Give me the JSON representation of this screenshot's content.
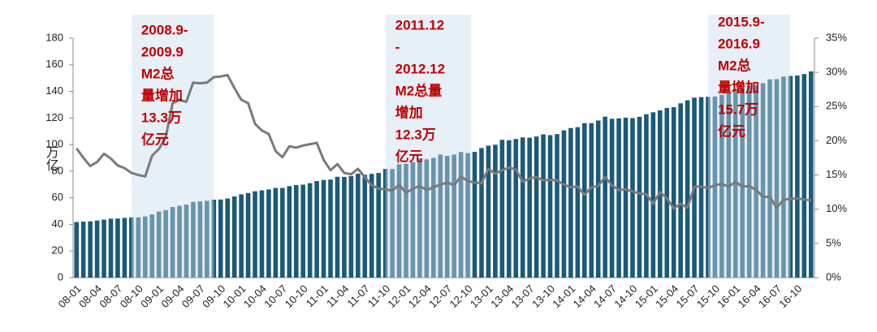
{
  "chart_data": {
    "type": "bar",
    "y_label": "万亿",
    "categories": [
      "08-01",
      null,
      null,
      "08-04",
      null,
      null,
      "08-07",
      null,
      null,
      "08-10",
      null,
      null,
      "09-01",
      null,
      null,
      "09-04",
      null,
      null,
      "09-07",
      null,
      null,
      "09-10",
      null,
      null,
      "10-01",
      null,
      null,
      "10-04",
      null,
      null,
      "10-07",
      null,
      null,
      "10-10",
      null,
      null,
      "11-01",
      null,
      null,
      "11-04",
      null,
      null,
      "11-07",
      null,
      null,
      "11-10",
      null,
      null,
      "12-01",
      null,
      null,
      "12-04",
      null,
      null,
      "12-07",
      null,
      null,
      "12-10",
      null,
      null,
      "13-01",
      null,
      null,
      "13-04",
      null,
      null,
      "13-07",
      null,
      null,
      "13-10",
      null,
      null,
      "14-01",
      null,
      null,
      "14-04",
      null,
      null,
      "14-07",
      null,
      null,
      "14-10",
      null,
      null,
      "15-01",
      null,
      null,
      "15-04",
      null,
      null,
      "15-07",
      null,
      null,
      "15-10",
      null,
      null,
      "16-01",
      null,
      null,
      "16-04",
      null,
      null,
      "16-07",
      null,
      null,
      "16-10",
      null,
      null
    ],
    "series": [
      {
        "type": "bar",
        "color": "#1b5a78",
        "values": [
          41.8,
          42.1,
          42.3,
          42.9,
          43.6,
          44.3,
          44.4,
          44.9,
          45.3,
          45.3,
          46.0,
          47.5,
          49.6,
          50.7,
          53.1,
          54.0,
          54.9,
          56.9,
          57.3,
          57.7,
          58.6,
          58.7,
          59.5,
          61.0,
          62.6,
          63.6,
          64.9,
          65.6,
          66.3,
          67.4,
          67.4,
          68.8,
          69.6,
          69.9,
          71.0,
          72.6,
          73.4,
          73.7,
          75.8,
          75.7,
          76.3,
          78.1,
          77.3,
          78.0,
          78.7,
          81.7,
          81.6,
          85.2,
          85.6,
          86.7,
          89.6,
          88.9,
          90.0,
          92.5,
          91.5,
          92.5,
          94.4,
          93.6,
          94.5,
          97.4,
          99.2,
          99.9,
          103.6,
          103.3,
          104.2,
          105.4,
          105.2,
          106.1,
          107.7,
          107.1,
          107.9,
          110.7,
          112.4,
          113.1,
          116.1,
          116.1,
          118.1,
          121.0,
          119.4,
          119.7,
          120.2,
          119.9,
          120.9,
          122.8,
          124.3,
          125.7,
          127.5,
          128.1,
          131.0,
          133.3,
          135.3,
          135.7,
          135.9,
          136.1,
          137.4,
          139.2,
          141.6,
          142.5,
          144.6,
          144.5,
          146.2,
          149.0,
          149.2,
          151.1,
          151.6,
          151.9,
          153.0,
          155.0
        ]
      },
      {
        "type": "line",
        "axis": "y2",
        "color": "#7a7a7a",
        "values": [
          18.9,
          17.5,
          16.3,
          16.9,
          18.1,
          17.4,
          16.4,
          16.0,
          15.3,
          15.0,
          14.8,
          17.8,
          18.8,
          20.5,
          25.5,
          26.0,
          25.7,
          28.5,
          28.4,
          28.5,
          29.3,
          29.4,
          29.6,
          27.7,
          26.0,
          25.5,
          22.5,
          21.5,
          21.0,
          18.5,
          17.6,
          19.2,
          19.0,
          19.3,
          19.5,
          19.7,
          17.2,
          15.7,
          16.6,
          15.3,
          15.1,
          15.9,
          14.7,
          13.5,
          13.0,
          12.9,
          12.7,
          13.6,
          12.4,
          13.0,
          13.4,
          12.8,
          13.2,
          13.6,
          13.9,
          13.5,
          14.8,
          14.1,
          13.9,
          13.8,
          15.9,
          15.2,
          15.7,
          16.1,
          15.8,
          14.0,
          14.5,
          14.7,
          14.2,
          14.3,
          14.2,
          13.6,
          13.2,
          13.3,
          12.1,
          13.2,
          13.4,
          14.7,
          13.5,
          12.8,
          12.9,
          12.6,
          12.3,
          12.2,
          10.8,
          12.5,
          11.6,
          10.1,
          10.8,
          10.2,
          13.3,
          13.3,
          13.1,
          13.5,
          13.7,
          13.3,
          14.0,
          13.3,
          13.4,
          12.8,
          11.8,
          11.8,
          10.2,
          11.4,
          11.5,
          11.6,
          11.4,
          11.3
        ]
      }
    ],
    "ylim": [
      0,
      180
    ],
    "yticks": [
      0,
      20,
      40,
      60,
      80,
      100,
      120,
      140,
      160,
      180
    ],
    "y2lim": [
      0,
      35
    ],
    "y2ticks": [
      {
        "value": 0,
        "label": "0%"
      },
      {
        "value": 5,
        "label": "5%"
      },
      {
        "value": 10,
        "label": "10%"
      },
      {
        "value": 15,
        "label": "15%"
      },
      {
        "value": 20,
        "label": "20%"
      },
      {
        "value": 25,
        "label": "25%"
      },
      {
        "value": 30,
        "label": "30%"
      },
      {
        "value": 35,
        "label": "35%"
      }
    ],
    "annotations": [
      {
        "lines": [
          "2008.9-",
          "2009.9",
          "M2总",
          "量增加",
          "13.3万",
          "亿元"
        ]
      },
      {
        "lines": [
          "2011.12",
          "-",
          "2012.12",
          "M2总量",
          "增加",
          "12.3万",
          "亿元"
        ]
      },
      {
        "lines": [
          "2015.9-",
          "2016.9",
          "M2总",
          "量增加",
          "15.7万",
          "亿元"
        ]
      }
    ]
  }
}
